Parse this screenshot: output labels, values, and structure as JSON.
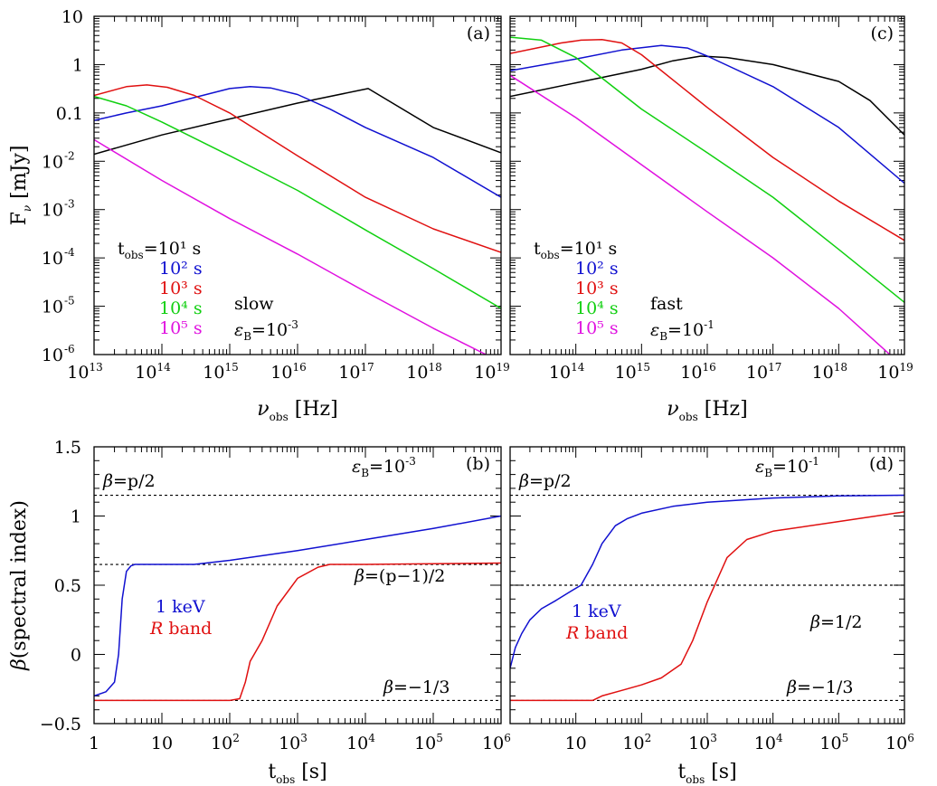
{
  "chart_data": [
    {
      "panel": "(a)",
      "type": "line",
      "x_scale": "log",
      "y_scale": "log",
      "xlabel": "ν_obs [Hz]",
      "ylabel": "F_ν [mJy]",
      "xlim": [
        10000000000000.0,
        1e+19
      ],
      "ylim": [
        1e-06,
        10
      ],
      "annotations": {
        "mode": "slow",
        "epsB": "ε_B=10^-3"
      },
      "legend_title": "t_obs=",
      "series": [
        {
          "name": "10¹ s",
          "color": "#000000",
          "x": [
            10000000000000.0,
            100000000000000.0,
            1000000000000000.0,
            1e+16,
            1.1e+17,
            1e+18,
            1e+19
          ],
          "y": [
            0.014,
            0.035,
            0.075,
            0.16,
            0.32,
            0.05,
            0.015
          ]
        },
        {
          "name": "10² s",
          "color": "#1010d0",
          "x": [
            10000000000000.0,
            30000000000000.0,
            100000000000000.0,
            500000000000000.0,
            1000000000000000.0,
            2000000000000000.0,
            4000000000000000.0,
            1e+16,
            3e+16,
            1e+17,
            1e+18,
            1e+19
          ],
          "y": [
            0.07,
            0.1,
            0.14,
            0.25,
            0.32,
            0.35,
            0.33,
            0.24,
            0.12,
            0.05,
            0.012,
            0.0018
          ]
        },
        {
          "name": "10³ s",
          "color": "#e01010",
          "x": [
            10000000000000.0,
            30000000000000.0,
            60000000000000.0,
            120000000000000.0,
            300000000000000.0,
            1000000000000000.0,
            1e+16,
            1e+17,
            1e+18,
            1e+19
          ],
          "y": [
            0.23,
            0.35,
            0.38,
            0.34,
            0.23,
            0.1,
            0.013,
            0.0018,
            0.0004,
            0.00013
          ]
        },
        {
          "name": "10⁴ s",
          "color": "#10d010",
          "x": [
            10000000000000.0,
            30000000000000.0,
            100000000000000.0,
            1000000000000000.0,
            1e+16,
            1e+17,
            1e+18,
            1e+19
          ],
          "y": [
            0.22,
            0.14,
            0.065,
            0.013,
            0.0025,
            0.00038,
            6e-05,
            9e-06
          ]
        },
        {
          "name": "10⁵ s",
          "color": "#e010e0",
          "x": [
            10000000000000.0,
            100000000000000.0,
            1000000000000000.0,
            1e+16,
            1e+17,
            1e+18,
            6e+18
          ],
          "y": [
            0.028,
            0.004,
            0.00065,
            0.00012,
            2e-05,
            3.5e-06,
            1e-06
          ]
        }
      ]
    },
    {
      "panel": "(c)",
      "type": "line",
      "x_scale": "log",
      "y_scale": "log",
      "xlabel": "ν_obs [Hz]",
      "ylabel": "",
      "xlim": [
        10000000000000.0,
        1e+19
      ],
      "ylim": [
        1e-06,
        10
      ],
      "annotations": {
        "mode": "fast",
        "epsB": "ε_B=10^-1"
      },
      "legend_title": "t_obs=",
      "series": [
        {
          "name": "10¹ s",
          "color": "#000000",
          "x": [
            10000000000000.0,
            100000000000000.0,
            1000000000000000.0,
            3000000000000000.0,
            8000000000000000.0,
            2e+16,
            1e+17,
            1e+18,
            3e+18,
            1e+19
          ],
          "y": [
            0.22,
            0.42,
            0.8,
            1.2,
            1.5,
            1.4,
            1.0,
            0.45,
            0.18,
            0.035
          ]
        },
        {
          "name": "10² s",
          "color": "#1010d0",
          "x": [
            10000000000000.0,
            100000000000000.0,
            500000000000000.0,
            2000000000000000.0,
            5000000000000000.0,
            1e+16,
            1e+17,
            1e+18,
            1e+19
          ],
          "y": [
            0.75,
            1.3,
            2.0,
            2.5,
            2.2,
            1.5,
            0.35,
            0.05,
            0.0035
          ]
        },
        {
          "name": "10³ s",
          "color": "#e01010",
          "x": [
            10000000000000.0,
            60000000000000.0,
            120000000000000.0,
            250000000000000.0,
            500000000000000.0,
            1000000000000000.0,
            1e+16,
            1e+17,
            1e+18,
            1e+19
          ],
          "y": [
            1.7,
            2.8,
            3.2,
            3.3,
            2.8,
            1.6,
            0.13,
            0.012,
            0.0015,
            0.00023
          ]
        },
        {
          "name": "10⁴ s",
          "color": "#10d010",
          "x": [
            10000000000000.0,
            30000000000000.0,
            100000000000000.0,
            1000000000000000.0,
            1e+16,
            1e+17,
            1e+18,
            1e+19
          ],
          "y": [
            3.7,
            3.2,
            1.4,
            0.12,
            0.015,
            0.0018,
            0.00015,
            1.2e-05
          ]
        },
        {
          "name": "10⁵ s",
          "color": "#e010e0",
          "x": [
            10000000000000.0,
            100000000000000.0,
            1000000000000000.0,
            1e+16,
            1e+17,
            1e+18,
            6e+18
          ],
          "y": [
            0.6,
            0.08,
            0.0085,
            0.0009,
            0.0001,
            9e-06,
            1e-06
          ]
        }
      ]
    },
    {
      "panel": "(b)",
      "type": "line",
      "x_scale": "log",
      "y_scale": "linear",
      "xlabel": "t_obs [s]",
      "ylabel": "β(spectral index)",
      "xlim": [
        1,
        1000000.0
      ],
      "ylim": [
        -0.5,
        1.5
      ],
      "annotations": {
        "epsB": "ε_B=10^-3",
        "top_ref": "β=p/2",
        "mid_ref": "β=(p−1)/2",
        "low_ref": "β=−1/3"
      },
      "ref_lines": [
        1.15,
        0.65,
        -0.333
      ],
      "legend": [
        "1 keV",
        "R band"
      ],
      "series": [
        {
          "name": "1 keV",
          "color": "#1010d0",
          "x": [
            1,
            1.5,
            2,
            2.3,
            2.6,
            3,
            3.5,
            4,
            10,
            30,
            100,
            1000.0,
            10000.0,
            100000.0,
            1000000.0
          ],
          "y": [
            -0.3,
            -0.27,
            -0.2,
            0.0,
            0.4,
            0.6,
            0.64,
            0.65,
            0.65,
            0.65,
            0.68,
            0.75,
            0.83,
            0.91,
            1.0
          ]
        },
        {
          "name": "R band",
          "color": "#e01010",
          "x": [
            1,
            10,
            100,
            140,
            170,
            200,
            300,
            500,
            1000,
            2000,
            3000,
            10000.0,
            100000.0,
            1000000.0
          ],
          "y": [
            -0.333,
            -0.333,
            -0.333,
            -0.32,
            -0.2,
            -0.05,
            0.1,
            0.35,
            0.55,
            0.63,
            0.65,
            0.65,
            0.655,
            0.66
          ]
        }
      ]
    },
    {
      "panel": "(d)",
      "type": "line",
      "x_scale": "log",
      "y_scale": "linear",
      "xlabel": "t_obs [s]",
      "ylabel": "",
      "xlim": [
        1,
        1000000.0
      ],
      "ylim": [
        -0.5,
        1.5
      ],
      "annotations": {
        "epsB": "ε_B=10^-1",
        "top_ref": "β=p/2",
        "mid_ref": "β=1/2",
        "low_ref": "β=−1/3"
      },
      "ref_lines": [
        1.15,
        0.5,
        -0.333
      ],
      "legend": [
        "1 keV",
        "R band"
      ],
      "series": [
        {
          "name": "1 keV",
          "color": "#1010d0",
          "x": [
            1,
            1.2,
            1.5,
            2,
            3,
            5,
            8,
            12,
            18,
            25,
            40,
            60,
            100,
            300,
            1000,
            10000.0,
            100000.0,
            1000000.0
          ],
          "y": [
            -0.1,
            0.05,
            0.15,
            0.25,
            0.33,
            0.39,
            0.45,
            0.5,
            0.65,
            0.8,
            0.93,
            0.98,
            1.02,
            1.07,
            1.1,
            1.13,
            1.145,
            1.15
          ]
        },
        {
          "name": "R band",
          "color": "#e01010",
          "x": [
            1,
            10,
            18,
            25,
            50,
            100,
            200,
            400,
            600,
            1000,
            2000,
            4000,
            10000.0,
            100000.0,
            1000000.0
          ],
          "y": [
            -0.333,
            -0.333,
            -0.333,
            -0.3,
            -0.26,
            -0.22,
            -0.17,
            -0.07,
            0.1,
            0.38,
            0.7,
            0.83,
            0.89,
            0.96,
            1.03
          ]
        }
      ]
    }
  ]
}
